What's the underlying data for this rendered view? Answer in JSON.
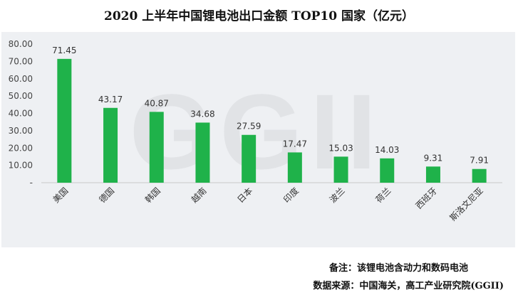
{
  "title": "2020 上半年中国锂电池出口金额 TOP10 国家（亿元）",
  "watermark": "GGII",
  "note": "备注：该锂电池含动力和数码电池",
  "source": "数据来源：中国海关，高工产业研究院(GGII)",
  "colors": {
    "bar": "#1fb24a",
    "background": "#eef0f3",
    "axis": "#c8c8c8"
  },
  "chart_data": {
    "type": "bar",
    "title": "2020 上半年中国锂电池出口金额 TOP10 国家（亿元）",
    "xlabel": "",
    "ylabel": "",
    "categories": [
      "美国",
      "德国",
      "韩国",
      "越南",
      "日本",
      "印度",
      "波兰",
      "荷兰",
      "西班牙",
      "斯洛文尼亚"
    ],
    "values": [
      71.45,
      43.17,
      40.87,
      34.68,
      27.59,
      17.47,
      15.03,
      14.03,
      9.31,
      7.91
    ],
    "value_labels": [
      "71.45",
      "43.17",
      "40.87",
      "34.68",
      "27.59",
      "17.47",
      "15.03",
      "14.03",
      "9.31",
      "7.91"
    ],
    "ylim": [
      0,
      80
    ],
    "yticks": [
      0,
      10,
      20,
      30,
      40,
      50,
      60,
      70,
      80
    ],
    "ytick_labels": [
      "-",
      "10.00",
      "20.00",
      "30.00",
      "40.00",
      "50.00",
      "60.00",
      "70.00",
      "80.00"
    ],
    "grid": false,
    "legend": "none"
  }
}
